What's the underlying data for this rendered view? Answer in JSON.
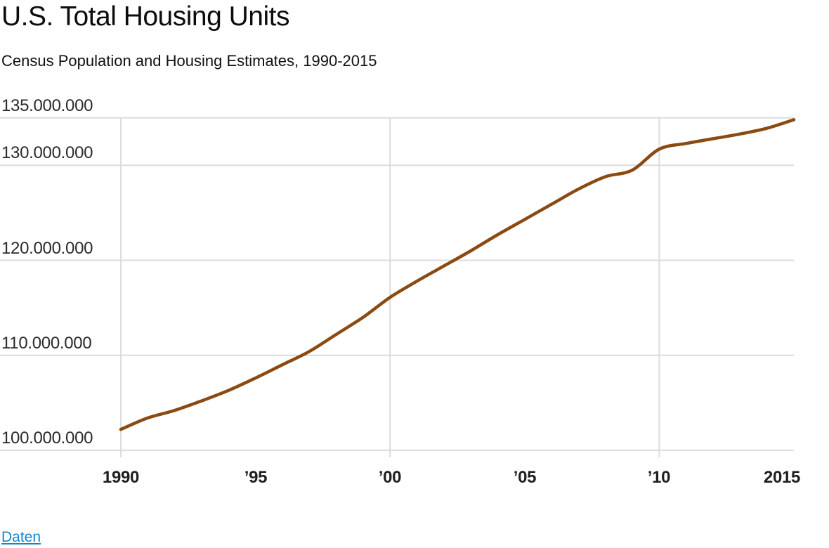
{
  "header": {
    "title": "U.S. Total Housing Units",
    "subtitle": "Census Population and Housing Estimates, 1990-2015"
  },
  "footer": {
    "data_link_label": "Daten"
  },
  "colors": {
    "line": "#8A4A12",
    "grid": "#DCDCDC",
    "link_blue": "#1086D4",
    "title_text": "#0D0D0D",
    "axis_text": "#2B2B2B"
  },
  "chart_data": {
    "type": "line",
    "title": "U.S. Total Housing Units",
    "subtitle": "Census Population and Housing Estimates, 1990-2015",
    "xlabel": "",
    "ylabel": "",
    "xlim": [
      1990,
      2015
    ],
    "ylim": [
      100000000,
      135000000
    ],
    "grid": "horizontal gridlines at labeled y ticks; vertical gridlines at 1990, 2000, 2010",
    "legend": "none",
    "x": [
      1990,
      1991,
      1992,
      1993,
      1994,
      1995,
      1996,
      1997,
      1998,
      1999,
      2000,
      2001,
      2002,
      2003,
      2004,
      2005,
      2006,
      2007,
      2008,
      2009,
      2010,
      2011,
      2012,
      2013,
      2014,
      2015
    ],
    "series": [
      {
        "name": "Total housing units",
        "color": "#8A4A12",
        "values": [
          102200000,
          103400000,
          104200000,
          105200000,
          106300000,
          107600000,
          109000000,
          110400000,
          112200000,
          114000000,
          116100000,
          117800000,
          119400000,
          121000000,
          122700000,
          124300000,
          125900000,
          127500000,
          128800000,
          129500000,
          131700000,
          132300000,
          132800000,
          133300000,
          133900000,
          134800000
        ]
      }
    ],
    "yticks": [
      {
        "value": 135000000,
        "label": "135.000.000"
      },
      {
        "value": 130000000,
        "label": "130.000.000"
      },
      {
        "value": 120000000,
        "label": "120.000.000"
      },
      {
        "value": 110000000,
        "label": "110.000.000"
      },
      {
        "value": 100000000,
        "label": "100.000.000"
      }
    ],
    "xticks": [
      {
        "value": 1990,
        "label": "1990",
        "grid": true
      },
      {
        "value": 1995,
        "label": "’95",
        "grid": false
      },
      {
        "value": 2000,
        "label": "’00",
        "grid": true
      },
      {
        "value": 2005,
        "label": "’05",
        "grid": false
      },
      {
        "value": 2010,
        "label": "’10",
        "grid": true
      },
      {
        "value": 2015,
        "label": "2015",
        "grid": false
      }
    ]
  }
}
